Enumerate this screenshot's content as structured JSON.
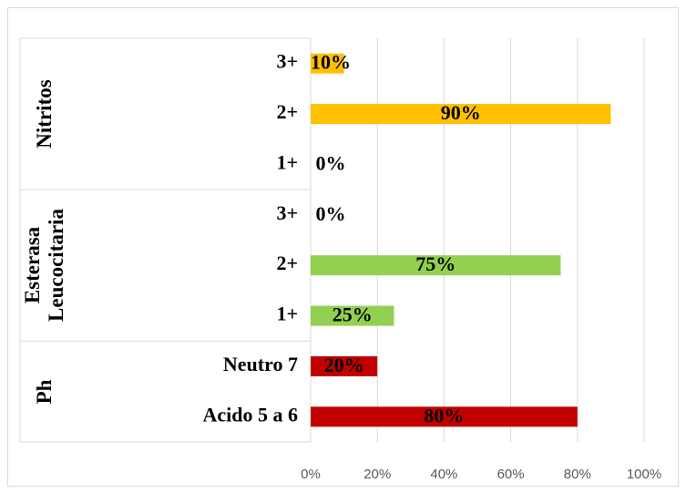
{
  "chart_data": {
    "type": "bar",
    "groups": [
      {
        "name": "Nitritos",
        "color": "#ffc000",
        "categories": [
          "3+",
          "2+",
          "1+"
        ],
        "values": [
          10,
          90,
          0
        ],
        "value_labels": [
          "10%",
          "90%",
          "0%"
        ]
      },
      {
        "name": "Esterasa Leucocitaria",
        "color": "#92d050",
        "categories": [
          "3+",
          "2+",
          "1+"
        ],
        "values": [
          0,
          75,
          25
        ],
        "value_labels": [
          "0%",
          "75%",
          "25%"
        ]
      },
      {
        "name": "Ph",
        "color": "#c00000",
        "categories": [
          "Neutro 7",
          "Acido 5 a 6"
        ],
        "values": [
          20,
          80
        ],
        "value_labels": [
          "20%",
          "80%"
        ]
      }
    ],
    "xlim": [
      0,
      100
    ],
    "xticks": [
      {
        "value": 0,
        "label": "0%"
      },
      {
        "value": 20,
        "label": "20%"
      },
      {
        "value": 40,
        "label": "40%"
      },
      {
        "value": 60,
        "label": "60%"
      },
      {
        "value": 80,
        "label": "80%"
      },
      {
        "value": 100,
        "label": "100%"
      }
    ],
    "grid": true
  }
}
